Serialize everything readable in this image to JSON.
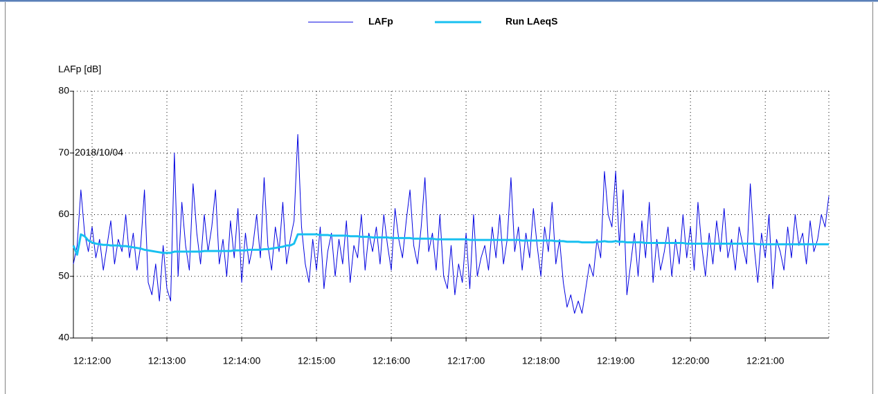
{
  "chart_data": {
    "type": "line",
    "y_label": "LAFp [dB]",
    "annotation": "2018/10/04",
    "ylim": [
      40,
      80
    ],
    "yticks": [
      40,
      50,
      60,
      70,
      80
    ],
    "grid": true,
    "legend": "top",
    "xlim": [
      "12:11:45",
      "12:21:51"
    ],
    "xticks": [
      "12:12:00",
      "12:13:00",
      "12:14:00",
      "12:15:00",
      "12:16:00",
      "12:17:00",
      "12:18:00",
      "12:19:00",
      "12:20:00",
      "12:21:00"
    ],
    "x": [
      "12:11:45",
      "12:11:48",
      "12:11:51",
      "12:11:54",
      "12:11:57",
      "12:12:00",
      "12:12:03",
      "12:12:06",
      "12:12:09",
      "12:12:12",
      "12:12:15",
      "12:12:18",
      "12:12:21",
      "12:12:24",
      "12:12:27",
      "12:12:30",
      "12:12:33",
      "12:12:36",
      "12:12:39",
      "12:12:42",
      "12:12:45",
      "12:12:48",
      "12:12:51",
      "12:12:54",
      "12:12:57",
      "12:13:00",
      "12:13:03",
      "12:13:06",
      "12:13:09",
      "12:13:12",
      "12:13:15",
      "12:13:18",
      "12:13:21",
      "12:13:24",
      "12:13:27",
      "12:13:30",
      "12:13:33",
      "12:13:36",
      "12:13:39",
      "12:13:42",
      "12:13:45",
      "12:13:48",
      "12:13:51",
      "12:13:54",
      "12:13:57",
      "12:14:00",
      "12:14:03",
      "12:14:06",
      "12:14:09",
      "12:14:12",
      "12:14:15",
      "12:14:18",
      "12:14:21",
      "12:14:24",
      "12:14:27",
      "12:14:30",
      "12:14:33",
      "12:14:36",
      "12:14:39",
      "12:14:42",
      "12:14:45",
      "12:14:48",
      "12:14:51",
      "12:14:54",
      "12:14:57",
      "12:15:00",
      "12:15:03",
      "12:15:06",
      "12:15:09",
      "12:15:12",
      "12:15:15",
      "12:15:18",
      "12:15:21",
      "12:15:24",
      "12:15:27",
      "12:15:30",
      "12:15:33",
      "12:15:36",
      "12:15:39",
      "12:15:42",
      "12:15:45",
      "12:15:48",
      "12:15:51",
      "12:15:54",
      "12:15:57",
      "12:16:00",
      "12:16:03",
      "12:16:06",
      "12:16:09",
      "12:16:12",
      "12:16:15",
      "12:16:18",
      "12:16:21",
      "12:16:24",
      "12:16:27",
      "12:16:30",
      "12:16:33",
      "12:16:36",
      "12:16:39",
      "12:16:42",
      "12:16:45",
      "12:16:48",
      "12:16:51",
      "12:16:54",
      "12:16:57",
      "12:17:00",
      "12:17:03",
      "12:17:06",
      "12:17:09",
      "12:17:12",
      "12:17:15",
      "12:17:18",
      "12:17:21",
      "12:17:24",
      "12:17:27",
      "12:17:30",
      "12:17:33",
      "12:17:36",
      "12:17:39",
      "12:17:42",
      "12:17:45",
      "12:17:48",
      "12:17:51",
      "12:17:54",
      "12:17:57",
      "12:18:00",
      "12:18:03",
      "12:18:06",
      "12:18:09",
      "12:18:12",
      "12:18:15",
      "12:18:18",
      "12:18:21",
      "12:18:24",
      "12:18:27",
      "12:18:30",
      "12:18:33",
      "12:18:36",
      "12:18:39",
      "12:18:42",
      "12:18:45",
      "12:18:48",
      "12:18:51",
      "12:18:54",
      "12:18:57",
      "12:19:00",
      "12:19:03",
      "12:19:06",
      "12:19:09",
      "12:19:12",
      "12:19:15",
      "12:19:18",
      "12:19:21",
      "12:19:24",
      "12:19:27",
      "12:19:30",
      "12:19:33",
      "12:19:36",
      "12:19:39",
      "12:19:42",
      "12:19:45",
      "12:19:48",
      "12:19:51",
      "12:19:54",
      "12:19:57",
      "12:20:00",
      "12:20:03",
      "12:20:06",
      "12:20:09",
      "12:20:12",
      "12:20:15",
      "12:20:18",
      "12:20:21",
      "12:20:24",
      "12:20:27",
      "12:20:30",
      "12:20:33",
      "12:20:36",
      "12:20:39",
      "12:20:42",
      "12:20:45",
      "12:20:48",
      "12:20:51",
      "12:20:54",
      "12:20:57",
      "12:21:00",
      "12:21:03",
      "12:21:06",
      "12:21:09",
      "12:21:12",
      "12:21:15",
      "12:21:18",
      "12:21:21",
      "12:21:24",
      "12:21:27",
      "12:21:30",
      "12:21:33",
      "12:21:36",
      "12:21:39",
      "12:21:42",
      "12:21:45",
      "12:21:48",
      "12:21:51"
    ],
    "series": [
      {
        "name": "LAFp",
        "color": "#0000e0",
        "width": 1,
        "values": [
          52,
          55,
          64,
          57,
          54,
          58,
          53,
          56,
          51,
          55,
          59,
          52,
          56,
          54,
          60,
          53,
          57,
          51,
          55,
          64,
          49,
          47,
          52,
          46,
          55,
          48,
          46,
          70,
          50,
          62,
          55,
          51,
          65,
          57,
          52,
          60,
          54,
          58,
          64,
          52,
          56,
          50,
          59,
          53,
          61,
          49,
          57,
          52,
          55,
          60,
          53,
          66,
          55,
          51,
          58,
          54,
          62,
          52,
          56,
          59,
          73,
          58,
          52,
          49,
          56,
          51,
          58,
          48,
          54,
          57,
          50,
          56,
          52,
          59,
          49,
          55,
          53,
          60,
          51,
          57,
          54,
          58,
          52,
          60,
          55,
          51,
          61,
          56,
          53,
          59,
          64,
          55,
          52,
          58,
          66,
          54,
          57,
          51,
          60,
          50,
          48,
          55,
          47,
          52,
          49,
          57,
          48,
          60,
          50,
          53,
          55,
          51,
          58,
          53,
          60,
          52,
          56,
          66,
          54,
          58,
          51,
          57,
          53,
          61,
          55,
          50,
          58,
          54,
          62,
          52,
          56,
          49,
          45,
          47,
          44,
          46,
          44,
          48,
          52,
          50,
          56,
          53,
          67,
          60,
          58,
          67,
          55,
          64,
          47,
          52,
          57,
          50,
          59,
          53,
          62,
          49,
          56,
          51,
          54,
          58,
          50,
          56,
          52,
          60,
          53,
          58,
          51,
          62,
          55,
          50,
          57,
          52,
          59,
          54,
          61,
          53,
          56,
          51,
          58,
          55,
          52,
          65,
          55,
          49,
          57,
          53,
          60,
          48,
          56,
          54,
          51,
          58,
          53,
          60,
          55,
          57,
          52,
          59,
          54,
          56,
          60,
          58,
          63
        ]
      },
      {
        "name": "Run LAeqS",
        "color": "#18c0f0",
        "width": 3,
        "values": [
          55,
          53.5,
          56.8,
          56.5,
          55.8,
          55.5,
          55.3,
          55.2,
          55.1,
          55.1,
          55,
          55,
          55,
          54.9,
          54.9,
          54.8,
          54.7,
          54.6,
          54.5,
          54.3,
          54.2,
          54.1,
          54,
          53.9,
          53.8,
          53.8,
          53.8,
          54,
          54,
          54,
          54,
          54,
          54,
          54,
          54,
          54.1,
          54.1,
          54.1,
          54.1,
          54.1,
          54.1,
          54.1,
          54.1,
          54.2,
          54.2,
          54.2,
          54.2,
          54.3,
          54.3,
          54.3,
          54.3,
          54.4,
          54.4,
          54.5,
          54.6,
          54.7,
          54.8,
          55,
          55,
          55.3,
          56.8,
          56.8,
          56.8,
          56.8,
          56.8,
          56.8,
          56.7,
          56.7,
          56.7,
          56.6,
          56.6,
          56.6,
          56.6,
          56.6,
          56.5,
          56.5,
          56.5,
          56.4,
          56.4,
          56.4,
          56.3,
          56.3,
          56.3,
          56.3,
          56.3,
          56.2,
          56.2,
          56.2,
          56.2,
          56.2,
          56.2,
          56.1,
          56.1,
          56.1,
          56.1,
          56.1,
          56.1,
          56,
          56,
          56,
          56,
          56,
          56,
          56,
          56,
          56,
          55.9,
          55.9,
          55.9,
          55.9,
          55.9,
          55.9,
          55.9,
          55.9,
          55.9,
          55.9,
          55.9,
          55.9,
          55.9,
          55.9,
          55.8,
          55.8,
          55.8,
          55.8,
          55.8,
          55.8,
          55.8,
          55.8,
          55.8,
          55.7,
          55.7,
          55.7,
          55.6,
          55.6,
          55.6,
          55.6,
          55.5,
          55.5,
          55.5,
          55.5,
          55.6,
          55.6,
          55.7,
          55.6,
          55.6,
          55.7,
          55.6,
          55.6,
          55.5,
          55.5,
          55.5,
          55.5,
          55.5,
          55.4,
          55.4,
          55.4,
          55.4,
          55.4,
          55.4,
          55.4,
          55.4,
          55.4,
          55.4,
          55.4,
          55.3,
          55.3,
          55.3,
          55.3,
          55.3,
          55.3,
          55.3,
          55.3,
          55.3,
          55.3,
          55.3,
          55.3,
          55.3,
          55.3,
          55.3,
          55.3,
          55.3,
          55.3,
          55.3,
          55.2,
          55.2,
          55.2,
          55.2,
          55.2,
          55.2,
          55.2,
          55.2,
          55.2,
          55.2,
          55.2,
          55.2,
          55.2,
          55.2,
          55.2,
          55.2,
          55.2,
          55.2,
          55.2,
          55.2
        ]
      }
    ]
  }
}
